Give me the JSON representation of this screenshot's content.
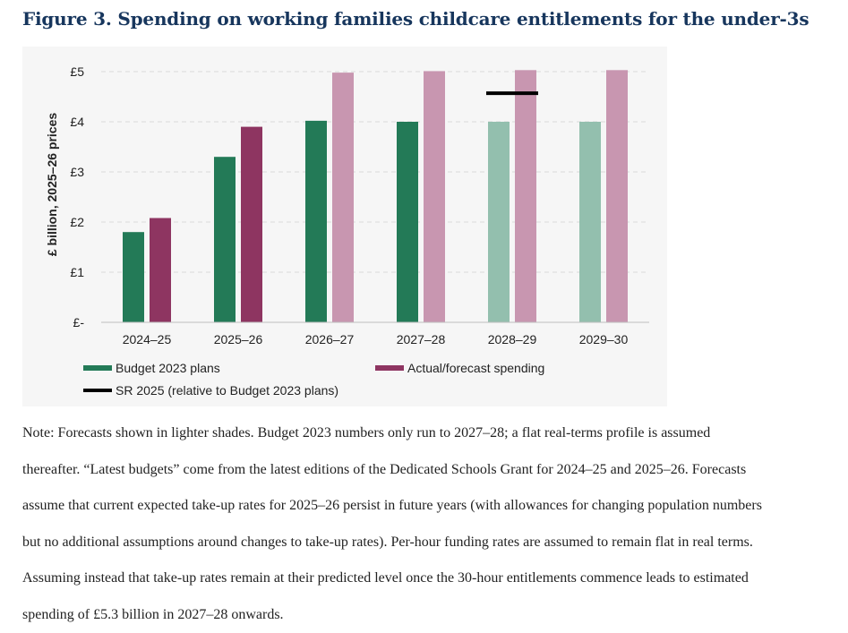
{
  "title": "Figure 3. Spending on working families childcare entitlements for the under-3s",
  "chart_data": {
    "type": "bar",
    "ylabel": "£ billion, 2025–26 prices",
    "ylim": [
      0,
      5.5
    ],
    "yticks": [
      {
        "value": 0,
        "label": "£-"
      },
      {
        "value": 1,
        "label": "£1"
      },
      {
        "value": 2,
        "label": "£2"
      },
      {
        "value": 3,
        "label": "£3"
      },
      {
        "value": 4,
        "label": "£4"
      },
      {
        "value": 5,
        "label": "£5"
      }
    ],
    "categories": [
      "2024–25",
      "2025–26",
      "2026–27",
      "2027–28",
      "2028–29",
      "2029–30"
    ],
    "series": [
      {
        "name": "Budget 2023 plans",
        "values": [
          1.8,
          3.3,
          4.02,
          4.0,
          4.0,
          4.0
        ],
        "color": "#237a57",
        "forecast_color": "#93bfae",
        "forecast": [
          false,
          false,
          false,
          false,
          true,
          true
        ]
      },
      {
        "name": "Actual/forecast spending",
        "values": [
          2.08,
          3.9,
          4.98,
          5.01,
          5.03,
          5.03
        ],
        "color": "#8e3561",
        "forecast_color": "#c896b0",
        "forecast": [
          false,
          false,
          true,
          true,
          true,
          true
        ]
      }
    ],
    "markers": [
      {
        "name": "SR 2025 (relative to Budget 2023 plans)",
        "category": "2028–29",
        "value": 4.57,
        "color": "#000000"
      }
    ],
    "grid": true,
    "legend_position": "bottom"
  },
  "note": {
    "lines": [
      "Note: Forecasts shown in lighter shades. Budget 2023 numbers only run to 2027–28; a flat real-terms profile is assumed",
      "thereafter. “Latest budgets” come from the latest editions of the Dedicated Schools Grant for 2024–25 and 2025–26. Forecasts",
      "assume that current expected take-up rates for 2025–26 persist in future years (with allowances for changing population numbers",
      "but no additional assumptions around changes to take-up rates). Per-hour funding rates are assumed to remain flat in real terms.",
      "Assuming instead that take-up rates remain at their predicted level once the 30-hour entitlements commence leads to estimated",
      "spending of £5.3 billion in 2027–28 onwards."
    ]
  }
}
